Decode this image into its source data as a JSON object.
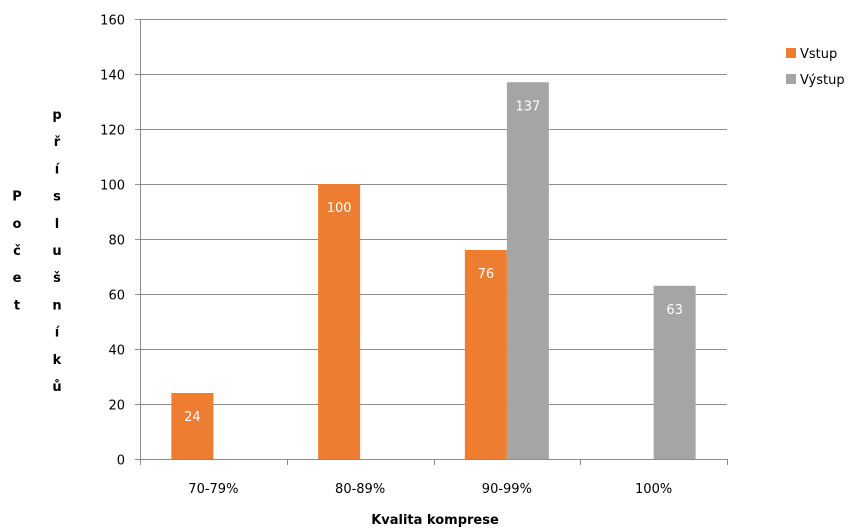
{
  "chart_data": {
    "type": "bar",
    "title": "",
    "xlabel": "Kvalita komprese",
    "ylabel_lines": [
      "Počet",
      "příslušníků"
    ],
    "categories": [
      "70-79%",
      "80-89%",
      "90-99%",
      "100%"
    ],
    "series": [
      {
        "name": "Vstup",
        "color": "#ED7D31",
        "values": [
          24,
          100,
          76,
          null
        ]
      },
      {
        "name": "Výstup",
        "color": "#A5A5A5",
        "values": [
          null,
          null,
          137,
          63
        ]
      }
    ],
    "ylim": [
      0,
      160
    ],
    "yticks": [
      0,
      20,
      40,
      60,
      80,
      100,
      120,
      140,
      160
    ],
    "grid": true,
    "legend_position": "right"
  }
}
